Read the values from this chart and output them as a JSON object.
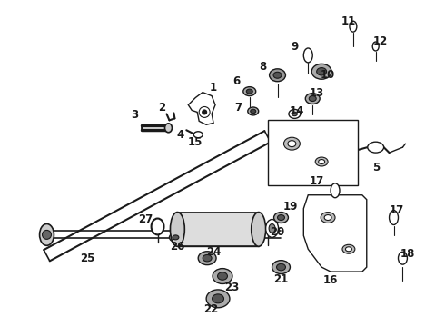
{
  "background_color": "#ffffff",
  "line_color": "#1a1a1a",
  "figsize": [
    4.9,
    3.6
  ],
  "dpi": 100,
  "label_fontsize": 8.5
}
